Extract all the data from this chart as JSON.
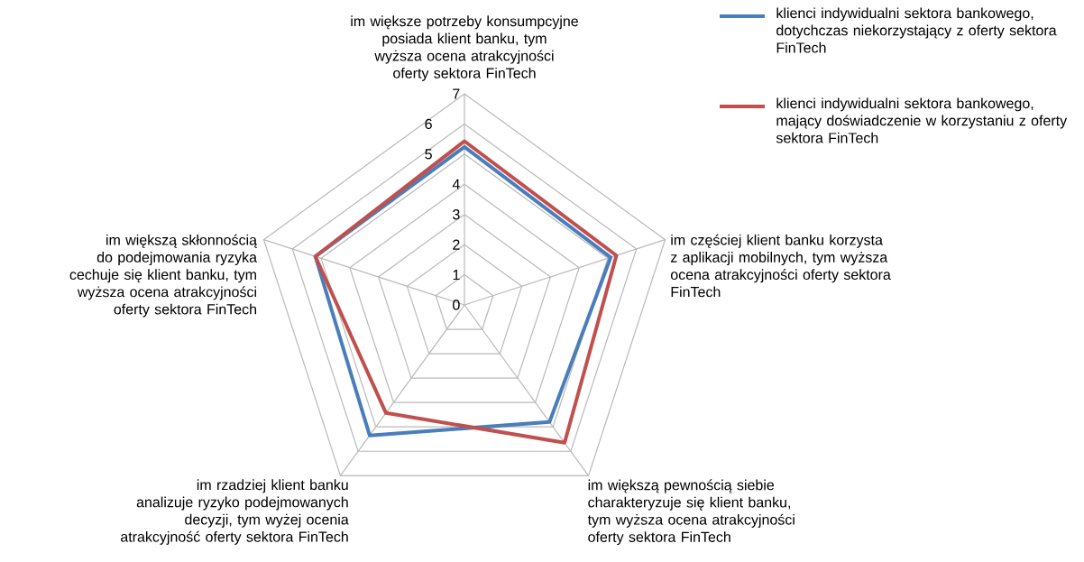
{
  "chart_data": {
    "type": "radar",
    "categories": [
      "im większe potrzeby konsumpcyjne posiada klient banku, tym wyższa ocena atrakcyjności oferty sektora FinTech",
      "im częściej klient banku korzysta z aplikacji mobilnych, tym wyższa ocena atrakcyjności oferty sektora FinTech",
      "im większą pewnością siebie charakteryzuje się klient banku, tym wyższa ocena atrakcyjności oferty sektora FinTech",
      "im rzadziej klient banku analizuje ryzyko podejmowanych decyzji, tym wyżej ocenia atrakcyjność oferty sektora FinTech",
      "im większą skłonnością do podejmowania ryzyka cechuje się klient banku, tym wyższa ocena atrakcyjności oferty sektora FinTech"
    ],
    "series": [
      {
        "name": "klienci indywidualni sektora bankowego, dotychczas niekorzystający z oferty sektora FinTech",
        "color": "#4a7ebb",
        "values": [
          5.24,
          5.1,
          4.8,
          5.35,
          5.2
        ]
      },
      {
        "name": "klienci indywidualni sektora bankowego, mający doświadczenie w korzystaniu z oferty sektora FinTech",
        "color": "#c0504d",
        "values": [
          5.43,
          5.3,
          5.65,
          4.43,
          5.2
        ]
      }
    ],
    "ylim": [
      0,
      7
    ],
    "yticks": [
      0,
      1,
      2,
      3,
      4,
      5,
      6,
      7
    ],
    "grid": true,
    "legend": "top right"
  }
}
